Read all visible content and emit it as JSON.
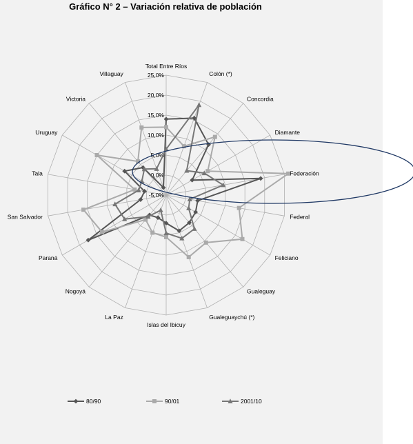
{
  "chart_data": {
    "type": "radar",
    "title": "Gráfico N° 2 – Variación relativa de población",
    "categories": [
      "Total Entre Ríos",
      "Colón (*)",
      "Concordia",
      "Diamante",
      "Federación",
      "Federal",
      "Feliciano",
      "Gualeguay",
      "Gualeguaychú (*)",
      "Islas del Ibicuy",
      "La Paz",
      "Nogoyá",
      "Paraná",
      "San Salvador",
      "Tala",
      "Uruguay",
      "Victoria",
      "Villaguay"
    ],
    "series": [
      {
        "name": "80/90",
        "color": "#555555",
        "marker": "diamond",
        "values": [
          14.0,
          15.5,
          11.5,
          2.5,
          19.0,
          3.0,
          3.5,
          4.0,
          4.5,
          2.0,
          1.0,
          1.5,
          17.5,
          1.5,
          0.5,
          7.0,
          4.0,
          -3.0
        ]
      },
      {
        "name": "90/01",
        "color": "#aaaaaa",
        "marker": "square",
        "values": [
          12.0,
          8.0,
          14.0,
          7.0,
          26.0,
          13.5,
          17.0,
          10.5,
          11.5,
          5.5,
          5.0,
          3.0,
          13.5,
          16.0,
          3.0,
          15.0,
          6.0,
          13.0
        ]
      },
      {
        "name": "2001/10",
        "color": "#777777",
        "marker": "triangle",
        "values": [
          6.5,
          19.0,
          3.0,
          6.0,
          9.5,
          1.0,
          1.5,
          6.0,
          6.5,
          4.5,
          -1.0,
          2.0,
          7.0,
          8.0,
          2.0,
          2.0,
          3.5,
          2.0
        ]
      }
    ],
    "r_range": [
      -5.0,
      25.0
    ],
    "ticks": [
      -5.0,
      0.0,
      5.0,
      10.0,
      15.0,
      20.0,
      25.0
    ],
    "tick_labels": [
      "-5,0%",
      "0,0%",
      "5,0%",
      "10,0%",
      "15,0%",
      "20,0%",
      "25,0%"
    ],
    "grid": true,
    "legend_position": "bottom"
  }
}
